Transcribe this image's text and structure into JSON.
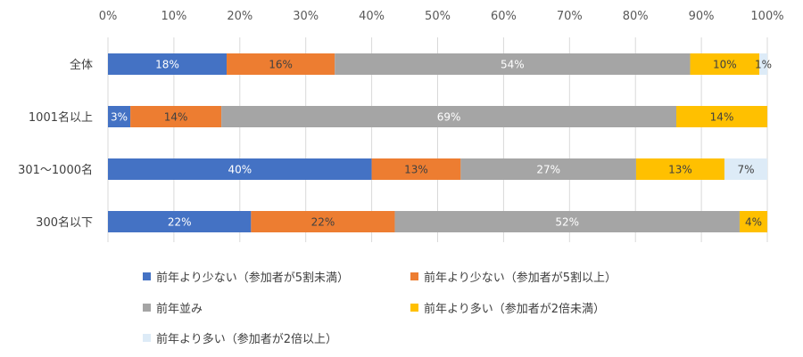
{
  "chart_data": {
    "type": "bar",
    "orientation": "horizontal",
    "stacked": true,
    "categories": [
      "全体",
      "1001名以上",
      "301～1000名",
      "300名以下"
    ],
    "xlim": [
      0,
      100
    ],
    "xticks": [
      "0%",
      "10%",
      "20%",
      "30%",
      "40%",
      "50%",
      "60%",
      "70%",
      "80%",
      "90%",
      "100%"
    ],
    "grid": true,
    "legend_position": "bottom",
    "series": [
      {
        "name": "前年より少ない（参加者が5割未満）",
        "color": "#4472C4",
        "label_color": "#ffffff",
        "values": [
          18,
          3.4,
          40,
          21.7
        ],
        "labels": [
          "18%",
          "3%",
          "40%",
          "22%"
        ]
      },
      {
        "name": "前年より少ない（参加者が5割以上）",
        "color": "#ED7D31",
        "label_color": "#404040",
        "values": [
          16.4,
          13.8,
          13.5,
          21.8
        ],
        "labels": [
          "16%",
          "14%",
          "13%",
          "22%"
        ]
      },
      {
        "name": "前年並み",
        "color": "#A5A5A5",
        "label_color": "#ffffff",
        "values": [
          53.9,
          69,
          26.6,
          52.3
        ],
        "labels": [
          "54%",
          "69%",
          "27%",
          "52%"
        ]
      },
      {
        "name": "前年より多い（参加者が2倍未満）",
        "color": "#FFC000",
        "label_color": "#404040",
        "values": [
          10.5,
          13.8,
          13.4,
          4.2
        ],
        "labels": [
          "10%",
          "14%",
          "13%",
          "4%"
        ]
      },
      {
        "name": "前年より多い（参加者が2倍以上）",
        "color": "#DDEBF7",
        "label_color": "#404040",
        "values": [
          1.2,
          0,
          6.5,
          0
        ],
        "labels": [
          "1%",
          "",
          "7%",
          ""
        ]
      }
    ]
  }
}
